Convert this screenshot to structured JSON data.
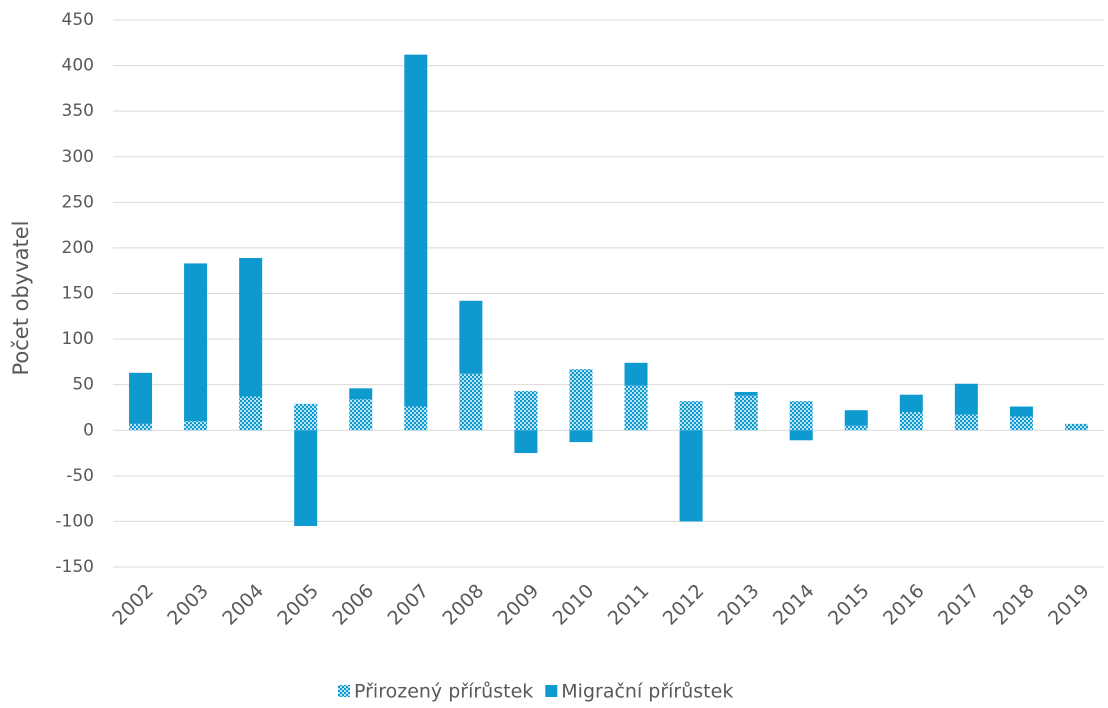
{
  "chart_data": {
    "type": "stacked_bar",
    "y_label": "Počet obyvatel",
    "categories": [
      "2002",
      "2003",
      "2004",
      "2005",
      "2006",
      "2007",
      "2008",
      "2009",
      "2010",
      "2011",
      "2012",
      "2013",
      "2014",
      "2015",
      "2016",
      "2017",
      "2018",
      "2019"
    ],
    "series": [
      {
        "name": "Přirozený přírůstek",
        "color": "#0e9acf",
        "fill_style": "dotted",
        "values": [
          7,
          10,
          37,
          29,
          34,
          26,
          62,
          43,
          67,
          49,
          32,
          38,
          32,
          5,
          20,
          17,
          15,
          7
        ]
      },
      {
        "name": "Migrační přírůstek",
        "color": "#0e9acf",
        "fill_style": "solid",
        "values": [
          56,
          173,
          152,
          -105,
          12,
          386,
          80,
          -25,
          -13,
          25,
          -100,
          4,
          -11,
          17,
          19,
          34,
          11,
          0
        ]
      }
    ],
    "ylim": [
      -150,
      450
    ],
    "yticks": [
      -150,
      -100,
      -50,
      0,
      50,
      100,
      150,
      200,
      250,
      300,
      350,
      400,
      450
    ],
    "grid": true,
    "legend": "bottom"
  }
}
